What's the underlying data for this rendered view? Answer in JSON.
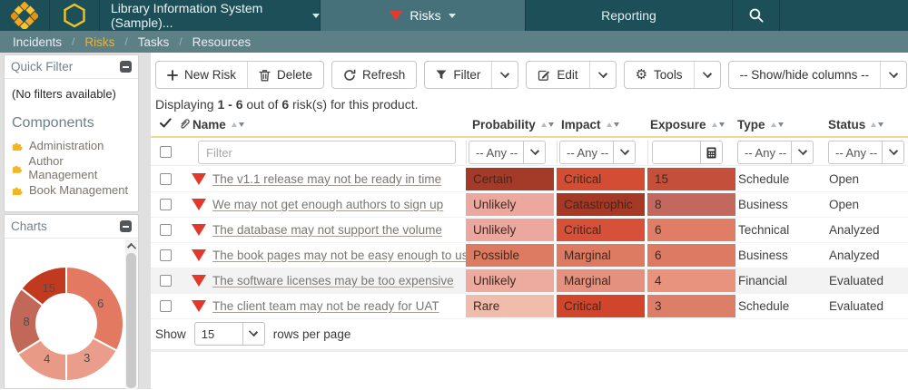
{
  "topbar": {
    "product_label": "Library Information System (Sample)...",
    "risks_label": "Risks",
    "reporting_label": "Reporting"
  },
  "breadcrumb": {
    "items": [
      "Incidents",
      "Risks",
      "Tasks",
      "Resources"
    ],
    "separator": "/",
    "active": "Risks"
  },
  "sidebar": {
    "quick_filter_title": "Quick Filter",
    "no_filters": "(No filters available)",
    "components_title": "Components",
    "components": [
      {
        "label": "Administration"
      },
      {
        "label": "Author Management"
      },
      {
        "label": "Book Management"
      }
    ],
    "charts_title": "Charts"
  },
  "toolbar": {
    "new_risk": "New Risk",
    "delete": "Delete",
    "refresh": "Refresh",
    "filter": "Filter",
    "edit": "Edit",
    "tools": "Tools",
    "show_hide_columns": "-- Show/hide columns --"
  },
  "summary": {
    "prefix": "Displaying",
    "range": "1 - 6",
    "infix": "out of",
    "count": "6",
    "suffix": "risk(s) for this product."
  },
  "table": {
    "headers": {
      "name": "Name",
      "probability": "Probability",
      "impact": "Impact",
      "exposure": "Exposure",
      "type": "Type",
      "status": "Status"
    },
    "filter_placeholder": "Filter",
    "any_label": "-- Any --",
    "rows": [
      {
        "name": "The v1.1 release may not be ready in time",
        "probability": {
          "text": "Certain",
          "color": "#a43b28"
        },
        "impact": {
          "text": "Critical",
          "color": "#d34d34"
        },
        "exposure": {
          "text": "15",
          "color": "#c44f3a"
        },
        "type": "Schedule",
        "status": "Open",
        "shaded": false
      },
      {
        "name": "We may not get enough authors to sign up",
        "probability": {
          "text": "Unlikely",
          "color": "#eca89e"
        },
        "impact": {
          "text": "Catastrophic",
          "color": "#a63826"
        },
        "exposure": {
          "text": "8",
          "color": "#c3685e"
        },
        "type": "Business",
        "status": "Open",
        "shaded": false
      },
      {
        "name": "The database may not support the volume",
        "probability": {
          "text": "Unlikely",
          "color": "#eca89e"
        },
        "impact": {
          "text": "Critical",
          "color": "#d6503a"
        },
        "exposure": {
          "text": "6",
          "color": "#df7d66"
        },
        "type": "Technical",
        "status": "Analyzed",
        "shaded": false
      },
      {
        "name": "The book pages may not be easy enough to use",
        "probability": {
          "text": "Possible",
          "color": "#dd7a62"
        },
        "impact": {
          "text": "Marginal",
          "color": "#dd7a62"
        },
        "exposure": {
          "text": "6",
          "color": "#dc7a64"
        },
        "type": "Business",
        "status": "Analyzed",
        "shaded": false
      },
      {
        "name": "The software licenses may be too expensive",
        "probability": {
          "text": "Unlikely",
          "color": "#ecab9e"
        },
        "impact": {
          "text": "Marginal",
          "color": "#e49180"
        },
        "exposure": {
          "text": "4",
          "color": "#e8937e"
        },
        "type": "Financial",
        "status": "Evaluated",
        "shaded": true
      },
      {
        "name": "The client team may not be ready for UAT",
        "probability": {
          "text": "Rare",
          "color": "#f0bcac"
        },
        "impact": {
          "text": "Critical",
          "color": "#d0452c"
        },
        "exposure": {
          "text": "3",
          "color": "#dd7f68"
        },
        "type": "Schedule",
        "status": "Evaluated",
        "shaded": false
      }
    ]
  },
  "pagination": {
    "show_label": "Show",
    "page_size": "15",
    "rows_label": "rows per page"
  },
  "chart_data": {
    "type": "donut",
    "title": "",
    "legend": "none",
    "values": [
      6,
      3,
      4,
      8,
      15
    ],
    "hole_ratio": 0.52,
    "segments": [
      {
        "value": 6,
        "label": "6",
        "start": 0,
        "end": 118,
        "color": "#e37960"
      },
      {
        "value": 3,
        "label": "3",
        "start": 118,
        "end": 180,
        "color": "#ea9d8a"
      },
      {
        "value": 4,
        "label": "4",
        "start": 180,
        "end": 238,
        "color": "#e99a86"
      },
      {
        "value": 8,
        "label": "8",
        "start": 238,
        "end": 308,
        "color": "#c26858"
      },
      {
        "value": 15,
        "label": "15",
        "start": 308,
        "end": 360,
        "color": "#c13a1f"
      }
    ]
  },
  "colors": {
    "topbar_bg": "#1d4f59",
    "topbar_active_bg": "#47717a",
    "breadcrumb_bg": "#5d8087",
    "accent_gold": "#e2b33c",
    "risk_red": "#e1392c",
    "header_rule": "#f0d794",
    "puzzle_yellow": "#f2b524"
  }
}
